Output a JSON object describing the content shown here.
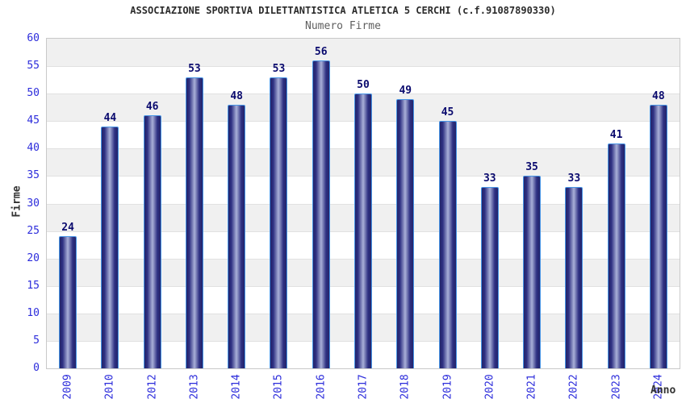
{
  "header": {
    "title": "ASSOCIAZIONE SPORTIVA DILETTANTISTICA ATLETICA 5 CERCHI (c.f.91087890330)",
    "subtitle": "Numero Firme"
  },
  "chart_data": {
    "type": "bar",
    "title": "ASSOCIAZIONE SPORTIVA DILETTANTISTICA ATLETICA 5 CERCHI (c.f.91087890330)",
    "subtitle": "Numero Firme",
    "xlabel": "Anno",
    "ylabel": "Firme",
    "categories": [
      "2009",
      "2010",
      "2012",
      "2013",
      "2014",
      "2015",
      "2016",
      "2017",
      "2018",
      "2019",
      "2020",
      "2021",
      "2022",
      "2023",
      "2024"
    ],
    "values": [
      24,
      44,
      46,
      53,
      48,
      53,
      56,
      50,
      49,
      45,
      33,
      35,
      33,
      41,
      48
    ],
    "ylim": [
      0,
      60
    ],
    "ytick_step": 5,
    "grid": "horizontal gridlines every 5 with alternating gray/white bands",
    "legend": "none",
    "bar_labels_shown": true,
    "colors": {
      "bar_edge_dark": "#23246a",
      "bar_mid_dark": "#2e3082",
      "bar_center_light": "#a9b0d8",
      "bar_border": "#4795e6",
      "value_label": "#0a0a6e",
      "axis_tick": "#2c2cdb",
      "band_gray": "#f0f0f0",
      "band_white": "#ffffff",
      "grid_line": "#e1e1e1",
      "plot_border": "#c9c9c9",
      "title": "#2b2b2b",
      "subtitle": "#5f5f5f",
      "axis_label": "#333333"
    }
  }
}
